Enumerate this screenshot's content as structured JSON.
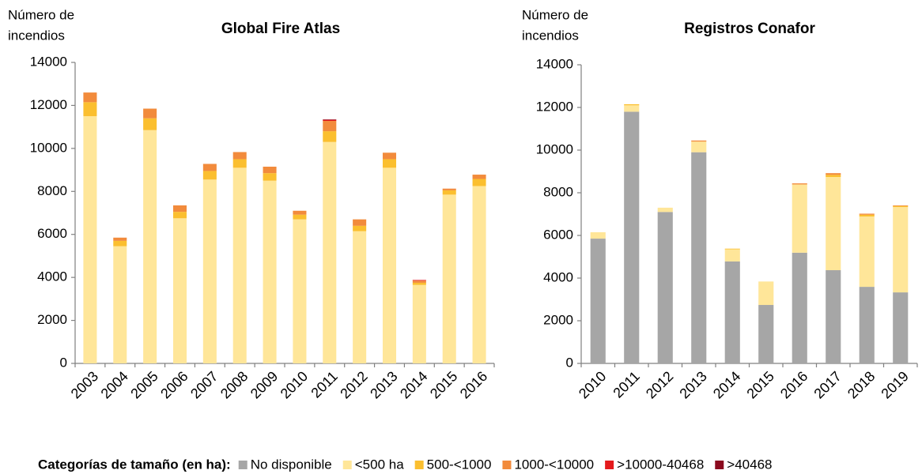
{
  "legend_title": "Categorías de tamaño (en ha):",
  "chart_data": [
    {
      "type": "bar",
      "stacked": true,
      "title": "Global Fire Atlas",
      "y_label": [
        "Número de",
        "incendios"
      ],
      "categories": [
        "2003",
        "2004",
        "2005",
        "2006",
        "2007",
        "2008",
        "2009",
        "2010",
        "2011",
        "2012",
        "2013",
        "2014",
        "2015",
        "2016"
      ],
      "ylim": [
        0,
        14000
      ],
      "yticks": [
        0,
        2000,
        4000,
        6000,
        8000,
        10000,
        12000,
        14000
      ],
      "grid": false,
      "series": [
        {
          "name": "No disponible",
          "color": "#a6a6a6",
          "values": [
            0,
            0,
            0,
            0,
            0,
            0,
            0,
            0,
            0,
            0,
            0,
            0,
            0,
            0
          ]
        },
        {
          "name": "<500 ha",
          "color": "#ffe699",
          "values": [
            11500,
            5450,
            10850,
            6750,
            8550,
            9100,
            8500,
            6700,
            10300,
            6150,
            9100,
            3650,
            7850,
            8250
          ]
        },
        {
          "name": "500-<1000",
          "color": "#fbbf2f",
          "values": [
            650,
            250,
            550,
            300,
            400,
            400,
            350,
            220,
            500,
            250,
            400,
            100,
            200,
            330
          ]
        },
        {
          "name": "1000-<10000",
          "color": "#f28b3c",
          "values": [
            450,
            150,
            450,
            300,
            330,
            330,
            300,
            180,
            480,
            300,
            300,
            100,
            80,
            200
          ]
        },
        {
          "name": ">10000-40468",
          "color": "#e41a1c",
          "values": [
            0,
            0,
            0,
            0,
            0,
            0,
            0,
            0,
            50,
            0,
            0,
            30,
            0,
            0
          ]
        },
        {
          "name": ">40468",
          "color": "#8b0a1e",
          "values": [
            0,
            0,
            0,
            0,
            0,
            0,
            0,
            0,
            20,
            0,
            0,
            0,
            0,
            0
          ]
        }
      ]
    },
    {
      "type": "bar",
      "stacked": true,
      "title": "Registros Conafor",
      "y_label": [
        "Número de",
        "incendios"
      ],
      "categories": [
        "2010",
        "2011",
        "2012",
        "2013",
        "2014",
        "2015",
        "2016",
        "2017",
        "2018",
        "2019"
      ],
      "ylim": [
        0,
        14000
      ],
      "yticks": [
        0,
        2000,
        4000,
        6000,
        8000,
        10000,
        12000,
        14000
      ],
      "grid": false,
      "series": [
        {
          "name": "No disponible",
          "color": "#a6a6a6",
          "values": [
            5850,
            11800,
            7100,
            9900,
            4780,
            2740,
            5190,
            4370,
            3590,
            3330
          ]
        },
        {
          "name": "<500 ha",
          "color": "#ffe699",
          "values": [
            300,
            300,
            200,
            500,
            570,
            1100,
            3200,
            4370,
            3300,
            4000
          ]
        },
        {
          "name": "500-<1000",
          "color": "#fbbf2f",
          "values": [
            0,
            50,
            0,
            0,
            30,
            0,
            0,
            100,
            80,
            50
          ]
        },
        {
          "name": "1000-<10000",
          "color": "#f28b3c",
          "values": [
            0,
            0,
            0,
            50,
            0,
            0,
            50,
            80,
            50,
            30
          ]
        },
        {
          "name": ">10000-40468",
          "color": "#e41a1c",
          "values": [
            0,
            0,
            0,
            0,
            0,
            0,
            0,
            0,
            0,
            0
          ]
        },
        {
          "name": ">40468",
          "color": "#8b0a1e",
          "values": [
            0,
            0,
            0,
            0,
            0,
            0,
            0,
            0,
            0,
            0
          ]
        }
      ]
    }
  ]
}
